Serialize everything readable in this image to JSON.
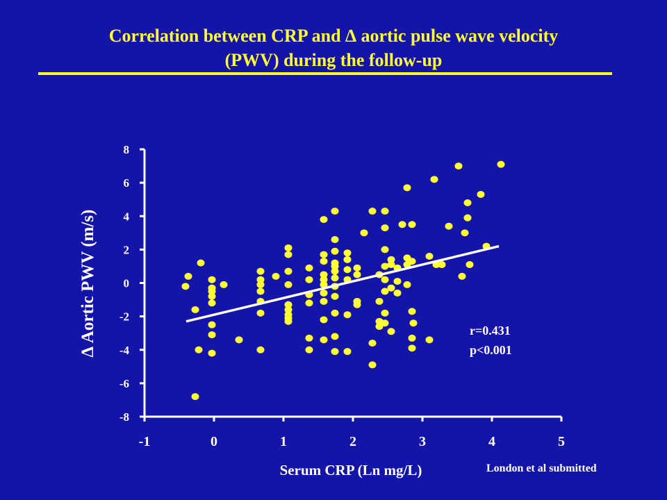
{
  "slide": {
    "title_line1": "Correlation between CRP and ∆ aortic pulse wave velocity",
    "title_line2": "(PWV) during the follow-up",
    "credit": "London et al submitted"
  },
  "colors": {
    "background": "#1414a8",
    "title": "#ffff33",
    "points": "#ffff33",
    "axis": "#ffffff",
    "trendline": "#ffffff"
  },
  "chart_data": {
    "type": "scatter",
    "xlabel": "Serum CRP (Ln mg/L)",
    "ylabel": "∆ Aortic PWV (m/s)",
    "xlim": [
      -1,
      5
    ],
    "ylim": [
      -8,
      8
    ],
    "xticks": [
      -1,
      0,
      1,
      2,
      3,
      4,
      5
    ],
    "yticks": [
      -8,
      -6,
      -4,
      -2,
      0,
      2,
      4,
      6,
      8
    ],
    "grid": false,
    "annotation_r": "r=0.431",
    "annotation_p": "p<0.001",
    "trendline": {
      "x": [
        -0.4,
        4.1
      ],
      "y": [
        -2.3,
        2.2
      ]
    },
    "points": [
      [
        -0.37,
        0.4
      ],
      [
        -0.41,
        -0.2
      ],
      [
        -0.19,
        1.2
      ],
      [
        -0.27,
        -1.6
      ],
      [
        -0.22,
        -4.0
      ],
      [
        -0.27,
        -6.8
      ],
      [
        -0.03,
        0.2
      ],
      [
        -0.03,
        -0.3
      ],
      [
        -0.03,
        -0.5
      ],
      [
        -0.03,
        -0.8
      ],
      [
        -0.03,
        -1.2
      ],
      [
        -0.03,
        -2.5
      ],
      [
        -0.03,
        -3.1
      ],
      [
        -0.03,
        -4.2
      ],
      [
        0.14,
        -0.1
      ],
      [
        0.36,
        -3.4
      ],
      [
        0.67,
        0.7
      ],
      [
        0.67,
        0.2
      ],
      [
        0.67,
        -0.1
      ],
      [
        0.67,
        -0.5
      ],
      [
        0.67,
        -1.1
      ],
      [
        0.67,
        -1.8
      ],
      [
        0.67,
        -4.0
      ],
      [
        0.89,
        0.4
      ],
      [
        1.07,
        2.1
      ],
      [
        1.07,
        1.7
      ],
      [
        1.07,
        0.7
      ],
      [
        1.07,
        -0.1
      ],
      [
        1.07,
        -1.3
      ],
      [
        1.07,
        -1.6
      ],
      [
        1.07,
        -1.9
      ],
      [
        1.07,
        -2.1
      ],
      [
        1.07,
        -2.3
      ],
      [
        1.37,
        0.9
      ],
      [
        1.37,
        0.2
      ],
      [
        1.37,
        -0.7
      ],
      [
        1.37,
        -1.2
      ],
      [
        1.37,
        -3.3
      ],
      [
        1.37,
        -4.0
      ],
      [
        1.58,
        3.8
      ],
      [
        1.58,
        1.7
      ],
      [
        1.58,
        1.3
      ],
      [
        1.58,
        0.5
      ],
      [
        1.58,
        0.2
      ],
      [
        1.58,
        -0.1
      ],
      [
        1.58,
        -0.6
      ],
      [
        1.58,
        -1.1
      ],
      [
        1.58,
        -2.2
      ],
      [
        1.58,
        -3.4
      ],
      [
        1.74,
        4.3
      ],
      [
        1.74,
        2.6
      ],
      [
        1.74,
        1.9
      ],
      [
        1.74,
        1.2
      ],
      [
        1.74,
        1.0
      ],
      [
        1.74,
        0.7
      ],
      [
        1.74,
        0.3
      ],
      [
        1.74,
        -0.2
      ],
      [
        1.74,
        -0.8
      ],
      [
        1.74,
        -1.8
      ],
      [
        1.74,
        -3.2
      ],
      [
        1.74,
        -4.1
      ],
      [
        1.92,
        1.8
      ],
      [
        1.92,
        1.4
      ],
      [
        1.92,
        0.8
      ],
      [
        1.92,
        0.2
      ],
      [
        1.92,
        -1.9
      ],
      [
        1.92,
        -4.1
      ],
      [
        2.06,
        0.9
      ],
      [
        2.06,
        0.5
      ],
      [
        2.06,
        -1.1
      ],
      [
        2.06,
        -1.3
      ],
      [
        2.16,
        3.0
      ],
      [
        2.28,
        4.3
      ],
      [
        2.28,
        -3.6
      ],
      [
        2.28,
        -4.9
      ],
      [
        2.38,
        0.5
      ],
      [
        2.38,
        -1.1
      ],
      [
        2.38,
        -2.3
      ],
      [
        2.38,
        -2.6
      ],
      [
        2.46,
        4.3
      ],
      [
        2.46,
        3.3
      ],
      [
        2.46,
        2.0
      ],
      [
        2.46,
        1.0
      ],
      [
        2.46,
        0.2
      ],
      [
        2.46,
        -0.5
      ],
      [
        2.46,
        -1.8
      ],
      [
        2.46,
        -2.4
      ],
      [
        2.55,
        1.4
      ],
      [
        2.55,
        1.1
      ],
      [
        2.55,
        -0.3
      ],
      [
        2.55,
        -2.9
      ],
      [
        2.64,
        0.9
      ],
      [
        2.64,
        0.1
      ],
      [
        2.64,
        -0.6
      ],
      [
        2.71,
        3.5
      ],
      [
        2.78,
        5.7
      ],
      [
        2.78,
        1.5
      ],
      [
        2.78,
        1.1
      ],
      [
        2.78,
        -0.1
      ],
      [
        2.85,
        3.5
      ],
      [
        2.85,
        1.3
      ],
      [
        2.85,
        -1.7
      ],
      [
        2.85,
        -3.3
      ],
      [
        2.85,
        -3.9
      ],
      [
        2.87,
        -2.4
      ],
      [
        3.1,
        1.6
      ],
      [
        3.1,
        -3.4
      ],
      [
        3.17,
        6.2
      ],
      [
        3.2,
        1.1
      ],
      [
        3.28,
        1.1
      ],
      [
        3.38,
        3.4
      ],
      [
        3.52,
        7.0
      ],
      [
        3.57,
        0.4
      ],
      [
        3.61,
        3.0
      ],
      [
        3.65,
        4.8
      ],
      [
        3.65,
        3.9
      ],
      [
        3.68,
        1.1
      ],
      [
        3.84,
        5.3
      ],
      [
        3.92,
        2.2
      ],
      [
        4.13,
        7.1
      ]
    ]
  }
}
